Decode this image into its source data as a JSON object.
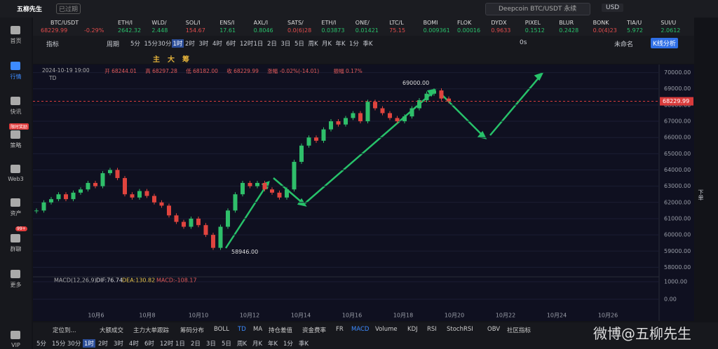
{
  "header": {
    "app_name": "五柳先生",
    "badge": "已过期",
    "search": "Deepcoin BTC/USDT 永续",
    "currency": "USD"
  },
  "sidebar": [
    "首页",
    "行情",
    "快讯",
    "策略",
    "Web3",
    "资产",
    "群聊",
    "更多",
    "VIP"
  ],
  "sidebar_badges": [
    "限时奖励",
    "99+"
  ],
  "tickers": [
    {
      "symbol": "BTC/USDT",
      "price": "68229.99",
      "change": "-0.29%"
    },
    {
      "symbol": "ETH/I",
      "price": "2642.32"
    },
    {
      "symbol": "WLD/",
      "price": "2.448"
    },
    {
      "symbol": "SOL/I",
      "price": "154.67"
    },
    {
      "symbol": "ENS/I",
      "price": "17.61"
    },
    {
      "symbol": "AXL/I",
      "price": "0.8046"
    },
    {
      "symbol": "SATS/",
      "price": "0.0(6)28"
    },
    {
      "symbol": "ETH/I",
      "price": "0.03873"
    },
    {
      "symbol": "ONE/",
      "price": "0.01421"
    },
    {
      "symbol": "LTC/L",
      "price": "75.15"
    },
    {
      "symbol": "BOMI",
      "price": "0.009361"
    },
    {
      "symbol": "FLOK",
      "price": "0.00016"
    },
    {
      "symbol": "DYDX",
      "price": "0.9633"
    },
    {
      "symbol": "PIXEL",
      "price": "0.1512"
    },
    {
      "symbol": "BLUR",
      "price": "0.2428"
    },
    {
      "symbol": "BONK",
      "price": "0.0(4)23"
    },
    {
      "symbol": "TIA/U",
      "price": "5.972"
    },
    {
      "symbol": "SUI/U",
      "price": "2.0612"
    }
  ],
  "toolbar": {
    "indicator": "指标",
    "period": "周期",
    "intervals": [
      "5分",
      "15分",
      "30分",
      "1时",
      "2时",
      "3时",
      "4时",
      "6时",
      "12时",
      "1日",
      "2日",
      "3日",
      "5日",
      "周K",
      "月K",
      "年K",
      "1分",
      "季K"
    ],
    "latency": "0s",
    "layout": "未命名",
    "analysis": "K线分析"
  },
  "drawing_tools": [
    "主",
    "大",
    "筹"
  ],
  "info_line": [
    "2024-10-19 19:00",
    "开 68244.01",
    "高 68297.28",
    "低 68182.00",
    "收 68229.99",
    "涨幅 -0.02%(-14.01)",
    "振幅 0.17%"
  ],
  "chart_data": {
    "type": "candlestick",
    "indicator": "TD",
    "closes": [
      61500,
      62000,
      62200,
      62500,
      62200,
      62600,
      62800,
      63200,
      63000,
      63800,
      64000,
      63500,
      62500,
      62300,
      62700,
      62400,
      62000,
      61800,
      61200,
      60800,
      60500,
      61000,
      60600,
      60000,
      59200,
      60500,
      61500,
      62500,
      63200,
      63000,
      63200,
      62800,
      62600,
      62300,
      62800,
      64500,
      65500,
      66000,
      65800,
      66500,
      67000,
      66800,
      67200,
      67500,
      67000,
      68200,
      67800,
      67500,
      67200,
      67000,
      67300,
      67800,
      68300,
      68700,
      68900,
      68400,
      68229.99
    ],
    "ylim": [
      57500,
      70500
    ],
    "yticks": [
      {
        "value": 70000,
        "label": "70000.00"
      },
      {
        "value": 69000,
        "label": "69000.00"
      },
      {
        "value": 68000,
        "label": "68000.00"
      },
      {
        "value": 67000,
        "label": "67000.00"
      },
      {
        "value": 66000,
        "label": "66000.00"
      },
      {
        "value": 65000,
        "label": "65000.00"
      },
      {
        "value": 64000,
        "label": "64000.00"
      },
      {
        "value": 63000,
        "label": "63000.00"
      },
      {
        "value": 62000,
        "label": "62000.00"
      },
      {
        "value": 61000,
        "label": "61000.00"
      },
      {
        "value": 60000,
        "label": "60000.00"
      },
      {
        "value": 59000,
        "label": "59000.00"
      },
      {
        "value": 58000,
        "label": "58000.00"
      }
    ],
    "last_price": 68229.99,
    "high_label": {
      "value": 69000,
      "label": "69000.00"
    },
    "low_label": {
      "value": 58946,
      "label": "58946.00"
    },
    "x_labels": [
      "10月6",
      "10月8",
      "10月10",
      "10月12",
      "10月14",
      "10月16",
      "10月18",
      "10月20",
      "10月22",
      "10月24",
      "10月26"
    ]
  },
  "macd": {
    "title": "MACD(12,26,9)",
    "dif": "DIF:76.74",
    "dea": "DEA:130.82",
    "macd": "MACD:-108.17",
    "yticks": [
      {
        "value": 1000,
        "label": "1000.00"
      },
      {
        "value": 0,
        "label": "0.00"
      }
    ]
  },
  "bottom_indicators": [
    "定位到...",
    "大额成交",
    "主力大单跟踪",
    "筹码分布",
    "BOLL",
    "TD",
    "MA",
    "持仓差值",
    "资金费率",
    "FR",
    "MACD",
    "Volume",
    "KDJ",
    "RSI",
    "StochRSI",
    "OBV",
    "社区指标"
  ],
  "side_labels": [
    "下单"
  ],
  "watermark": "微博@五柳先生"
}
